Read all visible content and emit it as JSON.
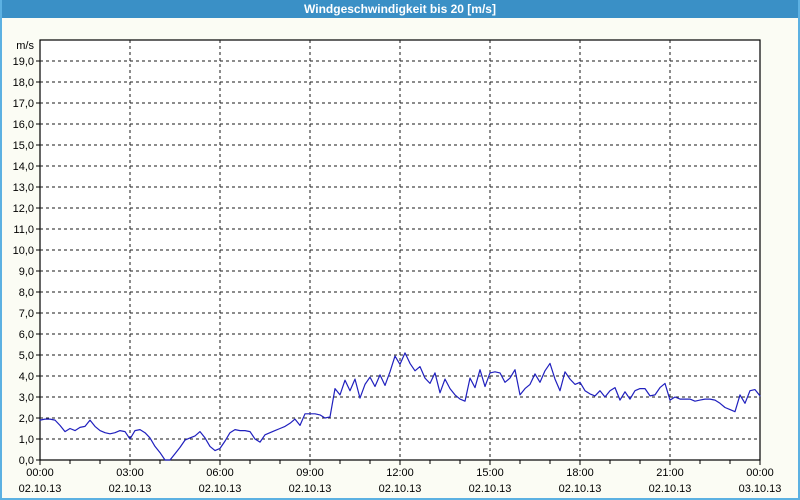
{
  "title": "Windgeschwindigkeit bis 20 [m/s]",
  "colors": {
    "titlebar_bg": "#3A90C6",
    "titlebar_text": "#FFFFFF",
    "window_border": "#5CB1E2",
    "page_bg": "#FBFCF4",
    "plot_bg": "#FFFFFF",
    "frame": "#000000",
    "grid": "#1a1a1a",
    "line": "#2020BE",
    "label_text": "#000000"
  },
  "chart_data": {
    "type": "line",
    "title": "Windgeschwindigkeit bis 20 [m/s]",
    "ylabel": "m/s",
    "unit_label": "m/s",
    "ylim": [
      0,
      20
    ],
    "y_tick_step": 1.0,
    "y_tick_labels": [
      "0,0",
      "1,0",
      "2,0",
      "3,0",
      "4,0",
      "5,0",
      "6,0",
      "7,0",
      "8,0",
      "9,0",
      "10,0",
      "11,0",
      "12,0",
      "13,0",
      "14,0",
      "15,0",
      "16,0",
      "17,0",
      "18,0",
      "19,0"
    ],
    "grid": "dashed",
    "legend": "none",
    "x_axis": {
      "start_label": {
        "time": "00:00",
        "date": "02.10.13"
      },
      "end_label": {
        "time": "00:00",
        "date": "03.10.13"
      },
      "total_minutes": 1440,
      "minor_tick_minutes": 60,
      "major_tick_minutes": 180,
      "tick_labels": [
        {
          "time": "00:00",
          "date": "02.10.13"
        },
        {
          "time": "03:00",
          "date": "02.10.13"
        },
        {
          "time": "06:00",
          "date": "02.10.13"
        },
        {
          "time": "09:00",
          "date": "02.10.13"
        },
        {
          "time": "12:00",
          "date": "02.10.13"
        },
        {
          "time": "15:00",
          "date": "02.10.13"
        },
        {
          "time": "18:00",
          "date": "02.10.13"
        },
        {
          "time": "21:00",
          "date": "02.10.13"
        },
        {
          "time": "00:00",
          "date": "03.10.13"
        }
      ]
    },
    "series": [
      {
        "name": "Windgeschwindigkeit",
        "sample_interval_minutes": 10,
        "values": [
          1.9,
          1.95,
          1.95,
          1.9,
          1.65,
          1.35,
          1.5,
          1.4,
          1.55,
          1.6,
          1.9,
          1.6,
          1.4,
          1.3,
          1.25,
          1.3,
          1.4,
          1.35,
          1.0,
          1.4,
          1.45,
          1.3,
          1.05,
          0.65,
          0.35,
          0.0,
          0.0,
          0.3,
          0.6,
          0.95,
          1.05,
          1.15,
          1.35,
          1.05,
          0.65,
          0.45,
          0.55,
          0.9,
          1.3,
          1.45,
          1.4,
          1.4,
          1.35,
          1.0,
          0.85,
          1.2,
          1.3,
          1.4,
          1.5,
          1.6,
          1.75,
          1.95,
          1.65,
          2.2,
          2.2,
          2.2,
          2.15,
          2.0,
          2.05,
          3.4,
          3.1,
          3.8,
          3.3,
          3.85,
          2.95,
          3.6,
          3.95,
          3.5,
          4.05,
          3.55,
          4.2,
          4.95,
          4.55,
          5.1,
          4.6,
          4.25,
          4.45,
          3.9,
          3.65,
          4.15,
          3.2,
          3.85,
          3.4,
          3.1,
          2.9,
          2.8,
          3.9,
          3.45,
          4.3,
          3.5,
          4.15,
          4.2,
          4.15,
          3.7,
          3.9,
          4.3,
          3.1,
          3.4,
          3.6,
          4.1,
          3.7,
          4.25,
          4.6,
          3.85,
          3.3,
          4.2,
          3.85,
          3.6,
          3.7,
          3.3,
          3.15,
          3.05,
          3.3,
          3.0,
          3.3,
          3.45,
          2.85,
          3.25,
          2.9,
          3.3,
          3.4,
          3.4,
          3.05,
          3.1,
          3.45,
          3.65,
          2.85,
          3.0,
          2.9,
          2.9,
          2.9,
          2.8,
          2.85,
          2.9,
          2.9,
          2.85,
          2.7,
          2.5,
          2.4,
          2.3,
          3.1,
          2.7,
          3.3,
          3.35,
          3.05
        ]
      }
    ]
  }
}
